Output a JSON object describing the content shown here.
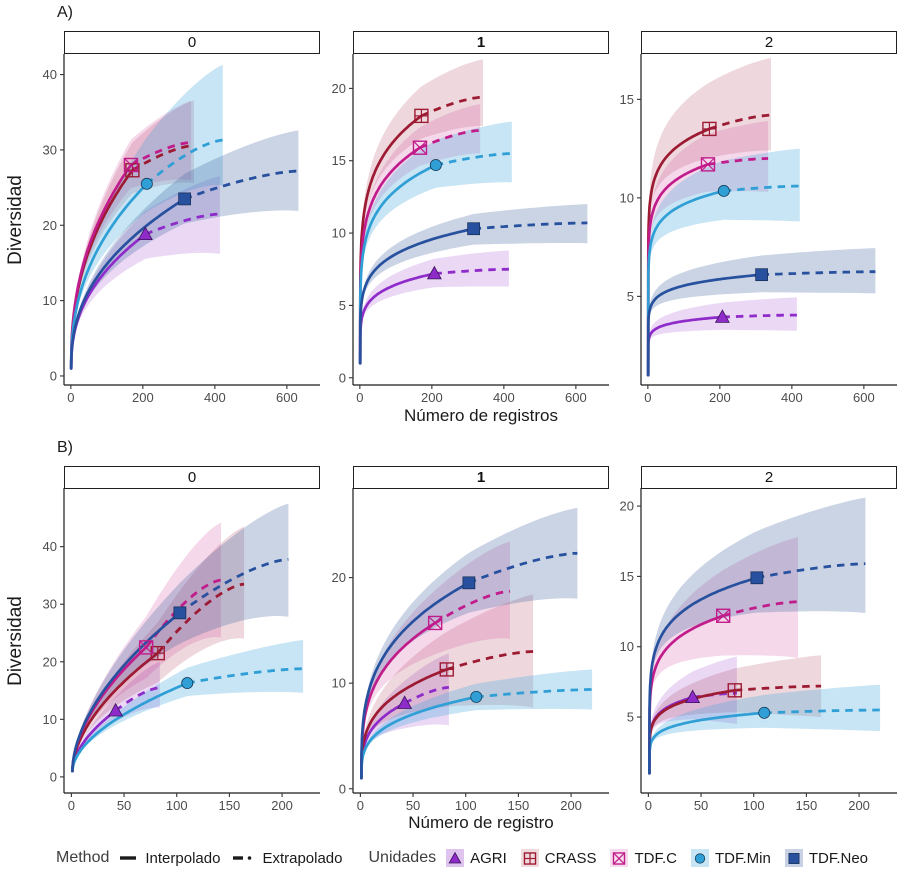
{
  "chart_data": {
    "type": "line",
    "subtype": "rarefaction-extrapolation-curves",
    "grid": false,
    "legend_position": "bottom",
    "units": [
      {
        "name": "AGRI",
        "marker": "triangle-filled",
        "color": "#8e2bc9",
        "ribbon_color": "rgba(148,60,205,0.20)",
        "legend_key_color": "rgba(148,60,205,0.30)"
      },
      {
        "name": "CRASS",
        "marker": "square-open-plus",
        "color": "#9d1a33",
        "ribbon_color": "rgba(157,26,51,0.17)",
        "legend_key_color": "rgba(157,26,51,0.16)"
      },
      {
        "name": "TDF.C",
        "marker": "square-open-x",
        "color": "#c11c8b",
        "ribbon_color": "rgba(193,28,139,0.17)",
        "legend_key_color": "rgba(193,28,139,0.16)"
      },
      {
        "name": "TDF.Min",
        "marker": "circle-filled",
        "color": "#2f9fd6",
        "ribbon_color": "rgba(68,170,220,0.30)",
        "legend_key_color": "rgba(68,170,220,0.30)"
      },
      {
        "name": "TDF.Neo",
        "marker": "square-filled",
        "color": "#27519e",
        "ribbon_color": "rgba(60,95,160,0.27)",
        "legend_key_color": "rgba(60,95,160,0.28)"
      }
    ],
    "method_legend": {
      "title": "Method",
      "interpolated": "Interpolado",
      "extrapolated": "Extrapolado"
    },
    "units_legend_title": "Unidades",
    "rows": [
      {
        "row_label": "A)",
        "y_axis_title": "Diversidad",
        "x_axis_title": "Número de registros",
        "x_ticks": [
          0,
          200,
          400,
          600
        ],
        "x_domain": [
          -19,
          692
        ],
        "panels": [
          {
            "facet_label": "0",
            "facet_bold": false,
            "y_ticks": [
              0,
              10,
              20,
              30,
              40
            ],
            "y_domain": [
              -1.2,
              42.2
            ],
            "series": [
              {
                "unit": "AGRI",
                "observed_point": [
                  207,
                  18.8
                ],
                "extrapolated_end": [
                  414,
                  21.5
                ],
                "ribbon_halfwidth_at_end": [
                  5.0,
                  5.3
                ]
              },
              {
                "unit": "CRASS",
                "observed_point": [
                  171,
                  27.3
                ],
                "extrapolated_end": [
                  342,
                  30.6
                ],
                "ribbon_halfwidth_at_end": [
                  6.0,
                  5.0
                ]
              },
              {
                "unit": "TDF.C",
                "observed_point": [
                  167,
                  28.0
                ],
                "extrapolated_end": [
                  334,
                  31.0
                ],
                "ribbon_halfwidth_at_end": [
                  5.5,
                  5.0
                ]
              },
              {
                "unit": "TDF.Min",
                "observed_point": [
                  211,
                  25.5
                ],
                "extrapolated_end": [
                  422,
                  31.3
                ],
                "ribbon_halfwidth_at_end": [
                  10.0,
                  6.0
                ]
              },
              {
                "unit": "TDF.Neo",
                "observed_point": [
                  316,
                  23.5
                ],
                "extrapolated_end": [
                  632,
                  27.2
                ],
                "ribbon_halfwidth_at_end": [
                  5.4,
                  5.3
                ]
              }
            ]
          },
          {
            "facet_label": "1",
            "facet_bold": true,
            "y_ticks": [
              0,
              5,
              10,
              15,
              20
            ],
            "y_domain": [
              -0.5,
              22.1
            ],
            "series": [
              {
                "unit": "AGRI",
                "observed_point": [
                  207,
                  7.2
                ],
                "extrapolated_end": [
                  414,
                  7.5
                ],
                "ribbon_halfwidth_at_end": [
                  1.3,
                  1.2
                ]
              },
              {
                "unit": "CRASS",
                "observed_point": [
                  171,
                  18.1
                ],
                "extrapolated_end": [
                  342,
                  19.4
                ],
                "ribbon_halfwidth_at_end": [
                  2.6,
                  2.0
                ]
              },
              {
                "unit": "TDF.C",
                "observed_point": [
                  167,
                  15.9
                ],
                "extrapolated_end": [
                  334,
                  17.1
                ],
                "ribbon_halfwidth_at_end": [
                  1.8,
                  1.6
                ]
              },
              {
                "unit": "TDF.Min",
                "observed_point": [
                  211,
                  14.7
                ],
                "extrapolated_end": [
                  422,
                  15.5
                ],
                "ribbon_halfwidth_at_end": [
                  2.2,
                  2.0
                ]
              },
              {
                "unit": "TDF.Neo",
                "observed_point": [
                  316,
                  10.3
                ],
                "extrapolated_end": [
                  632,
                  10.7
                ],
                "ribbon_halfwidth_at_end": [
                  1.3,
                  1.4
                ]
              }
            ]
          },
          {
            "facet_label": "2",
            "facet_bold": false,
            "y_ticks": [
              5,
              10,
              15
            ],
            "y_domain": [
              0.5,
              17.1
            ],
            "series": [
              {
                "unit": "AGRI",
                "observed_point": [
                  207,
                  3.95
                ],
                "extrapolated_end": [
                  414,
                  4.05
                ],
                "ribbon_halfwidth_at_end": [
                  0.9,
                  0.8
                ]
              },
              {
                "unit": "CRASS",
                "observed_point": [
                  171,
                  13.5
                ],
                "extrapolated_end": [
                  342,
                  14.2
                ],
                "ribbon_halfwidth_at_end": [
                  2.9,
                  1.8
                ]
              },
              {
                "unit": "TDF.C",
                "observed_point": [
                  167,
                  11.7
                ],
                "extrapolated_end": [
                  334,
                  12.0
                ],
                "ribbon_halfwidth_at_end": [
                  1.9,
                  1.7
                ]
              },
              {
                "unit": "TDF.Min",
                "observed_point": [
                  211,
                  10.35
                ],
                "extrapolated_end": [
                  422,
                  10.6
                ],
                "ribbon_halfwidth_at_end": [
                  1.9,
                  1.8
                ]
              },
              {
                "unit": "TDF.Neo",
                "observed_point": [
                  316,
                  6.1
                ],
                "extrapolated_end": [
                  632,
                  6.25
                ],
                "ribbon_halfwidth_at_end": [
                  1.2,
                  1.1
                ]
              }
            ]
          }
        ]
      },
      {
        "row_label": "B)",
        "y_axis_title": "Diversidad",
        "x_axis_title": "Número de registro",
        "x_ticks": [
          0,
          50,
          100,
          150,
          200
        ],
        "x_domain": [
          -7,
          236
        ],
        "panels": [
          {
            "facet_label": "0",
            "facet_bold": false,
            "y_ticks": [
              0,
              10,
              20,
              30,
              40
            ],
            "y_domain": [
              -2.8,
              49.5
            ],
            "series": [
              {
                "unit": "AGRI",
                "observed_point": [
                  42,
                  11.5
                ],
                "extrapolated_end": [
                  84,
                  15.5
                ],
                "ribbon_halfwidth_at_end": [
                  4.5,
                  3.5
                ]
              },
              {
                "unit": "CRASS",
                "observed_point": [
                  82,
                  21.5
                ],
                "extrapolated_end": [
                  164,
                  33.5
                ],
                "ribbon_halfwidth_at_end": [
                  10.0,
                  9.5
                ]
              },
              {
                "unit": "TDF.C",
                "observed_point": [
                  71,
                  22.5
                ],
                "extrapolated_end": [
                  142,
                  34.2
                ],
                "ribbon_halfwidth_at_end": [
                  10.0,
                  10.0
                ]
              },
              {
                "unit": "TDF.Min",
                "observed_point": [
                  110,
                  16.3
                ],
                "extrapolated_end": [
                  220,
                  18.8
                ],
                "ribbon_halfwidth_at_end": [
                  5.0,
                  4.2
                ]
              },
              {
                "unit": "TDF.Neo",
                "observed_point": [
                  103,
                  28.5
                ],
                "extrapolated_end": [
                  206,
                  37.8
                ],
                "ribbon_halfwidth_at_end": [
                  9.7,
                  10.0
                ]
              }
            ]
          },
          {
            "facet_label": "1",
            "facet_bold": true,
            "y_ticks": [
              0,
              10,
              20
            ],
            "y_domain": [
              -0.4,
              28.1
            ],
            "series": [
              {
                "unit": "AGRI",
                "observed_point": [
                  42,
                  8.1
                ],
                "extrapolated_end": [
                  84,
                  9.6
                ],
                "ribbon_halfwidth_at_end": [
                  3.2,
                  3.6
                ]
              },
              {
                "unit": "CRASS",
                "observed_point": [
                  82,
                  11.3
                ],
                "extrapolated_end": [
                  164,
                  13.0
                ],
                "ribbon_halfwidth_at_end": [
                  5.4,
                  5.3
                ]
              },
              {
                "unit": "TDF.C",
                "observed_point": [
                  71,
                  15.7
                ],
                "extrapolated_end": [
                  142,
                  18.7
                ],
                "ribbon_halfwidth_at_end": [
                  4.7,
                  4.5
                ]
              },
              {
                "unit": "TDF.Min",
                "observed_point": [
                  110,
                  8.7
                ],
                "extrapolated_end": [
                  220,
                  9.4
                ],
                "ribbon_halfwidth_at_end": [
                  1.9,
                  1.9
                ]
              },
              {
                "unit": "TDF.Neo",
                "observed_point": [
                  103,
                  19.5
                ],
                "extrapolated_end": [
                  206,
                  22.3
                ],
                "ribbon_halfwidth_at_end": [
                  4.3,
                  4.3
                ]
              }
            ]
          },
          {
            "facet_label": "2",
            "facet_bold": false,
            "y_ticks": [
              5,
              10,
              15,
              20
            ],
            "y_domain": [
              -0.4,
              21.0
            ],
            "series": [
              {
                "unit": "AGRI",
                "observed_point": [
                  42,
                  6.4
                ],
                "extrapolated_end": [
                  84,
                  6.7
                ],
                "ribbon_halfwidth_at_end": [
                  2.6,
                  2.2
                ]
              },
              {
                "unit": "CRASS",
                "observed_point": [
                  82,
                  6.9
                ],
                "extrapolated_end": [
                  164,
                  7.2
                ],
                "ribbon_halfwidth_at_end": [
                  2.2,
                  2.2
                ]
              },
              {
                "unit": "TDF.C",
                "observed_point": [
                  71,
                  12.2
                ],
                "extrapolated_end": [
                  142,
                  13.2
                ],
                "ribbon_halfwidth_at_end": [
                  4.6,
                  4.0
                ]
              },
              {
                "unit": "TDF.Min",
                "observed_point": [
                  110,
                  5.3
                ],
                "extrapolated_end": [
                  220,
                  5.5
                ],
                "ribbon_halfwidth_at_end": [
                  1.8,
                  1.5
                ]
              },
              {
                "unit": "TDF.Neo",
                "observed_point": [
                  103,
                  14.9
                ],
                "extrapolated_end": [
                  206,
                  15.9
                ],
                "ribbon_halfwidth_at_end": [
                  4.7,
                  3.5
                ]
              }
            ]
          }
        ]
      }
    ]
  }
}
